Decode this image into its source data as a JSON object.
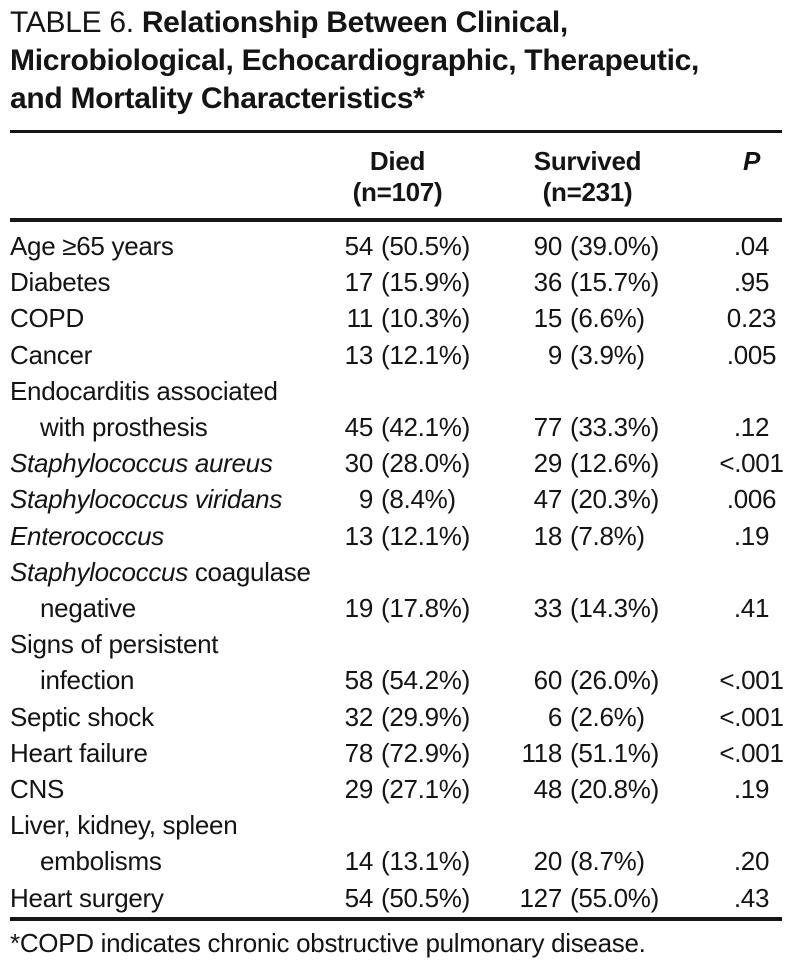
{
  "title": {
    "number": "TABLE 6. ",
    "line1": "Relationship Between Clinical,",
    "line2": "Microbiological, Echocardiographic, Therapeutic,",
    "line3": "and Mortality Characteristics*"
  },
  "header": {
    "died": "Died",
    "died_n": "(n=107)",
    "survived": "Survived",
    "survived_n": "(n=231)",
    "p": "P"
  },
  "rows": [
    {
      "label_runs": [
        {
          "text": "Age ≥65 years"
        }
      ],
      "died_n": "54",
      "died_pct": "(50.5%)",
      "survived_n": "90",
      "survived_pct": "(39.0%)",
      "p": ".04"
    },
    {
      "label_runs": [
        {
          "text": "Diabetes"
        }
      ],
      "died_n": "17",
      "died_pct": "(15.9%)",
      "survived_n": "36",
      "survived_pct": "(15.7%)",
      "p": ".95"
    },
    {
      "label_runs": [
        {
          "text": "COPD"
        }
      ],
      "died_n": "11",
      "died_pct": "(10.3%)",
      "survived_n": "15",
      "survived_pct": "(6.6%)",
      "p": "0.23"
    },
    {
      "label_runs": [
        {
          "text": "Cancer"
        }
      ],
      "died_n": "13",
      "died_pct": "(12.1%)",
      "survived_n": "9",
      "survived_pct": "(3.9%)",
      "p": ".005"
    },
    {
      "label_runs": [
        {
          "text": "Endocarditis associated"
        }
      ],
      "label2": "with prosthesis",
      "died_n": "45",
      "died_pct": "(42.1%)",
      "survived_n": "77",
      "survived_pct": "(33.3%)",
      "p": ".12"
    },
    {
      "label_runs": [
        {
          "text": "Staphylococcus aureus",
          "italic": true
        }
      ],
      "died_n": "30",
      "died_pct": "(28.0%)",
      "survived_n": "29",
      "survived_pct": "(12.6%)",
      "p": "<.001"
    },
    {
      "label_runs": [
        {
          "text": "Staphylococcus viridans",
          "italic": true
        }
      ],
      "died_n": "9",
      "died_pct": "(8.4%)",
      "survived_n": "47",
      "survived_pct": "(20.3%)",
      "p": ".006"
    },
    {
      "label_runs": [
        {
          "text": "Enterococcus",
          "italic": true
        }
      ],
      "died_n": "13",
      "died_pct": "(12.1%)",
      "survived_n": "18",
      "survived_pct": "(7.8%)",
      "p": ".19"
    },
    {
      "label_runs": [
        {
          "text": "Staphylococcus",
          "italic": true
        },
        {
          "text": " coagulase"
        }
      ],
      "label2": "negative",
      "died_n": "19",
      "died_pct": "(17.8%)",
      "survived_n": "33",
      "survived_pct": "(14.3%)",
      "p": ".41"
    },
    {
      "label_runs": [
        {
          "text": "Signs of persistent"
        }
      ],
      "label2": "infection",
      "died_n": "58",
      "died_pct": "(54.2%)",
      "survived_n": "60",
      "survived_pct": "(26.0%)",
      "p": "<.001"
    },
    {
      "label_runs": [
        {
          "text": "Septic shock"
        }
      ],
      "died_n": "32",
      "died_pct": "(29.9%)",
      "survived_n": "6",
      "survived_pct": "(2.6%)",
      "p": "<.001"
    },
    {
      "label_runs": [
        {
          "text": "Heart failure"
        }
      ],
      "died_n": "78",
      "died_pct": "(72.9%)",
      "survived_n": "118",
      "survived_pct": "(51.1%)",
      "p": "<.001"
    },
    {
      "label_runs": [
        {
          "text": "CNS"
        }
      ],
      "died_n": "29",
      "died_pct": "(27.1%)",
      "survived_n": "48",
      "survived_pct": "(20.8%)",
      "p": ".19"
    },
    {
      "label_runs": [
        {
          "text": "Liver, kidney, spleen"
        }
      ],
      "label2": "embolisms",
      "died_n": "14",
      "died_pct": "(13.1%)",
      "survived_n": "20",
      "survived_pct": "(8.7%)",
      "p": ".20"
    },
    {
      "label_runs": [
        {
          "text": "Heart surgery"
        }
      ],
      "died_n": "54",
      "died_pct": "(50.5%)",
      "survived_n": "127",
      "survived_pct": "(55.0%)",
      "p": ".43"
    }
  ],
  "footnote": "*COPD indicates chronic obstructive pulmonary disease."
}
